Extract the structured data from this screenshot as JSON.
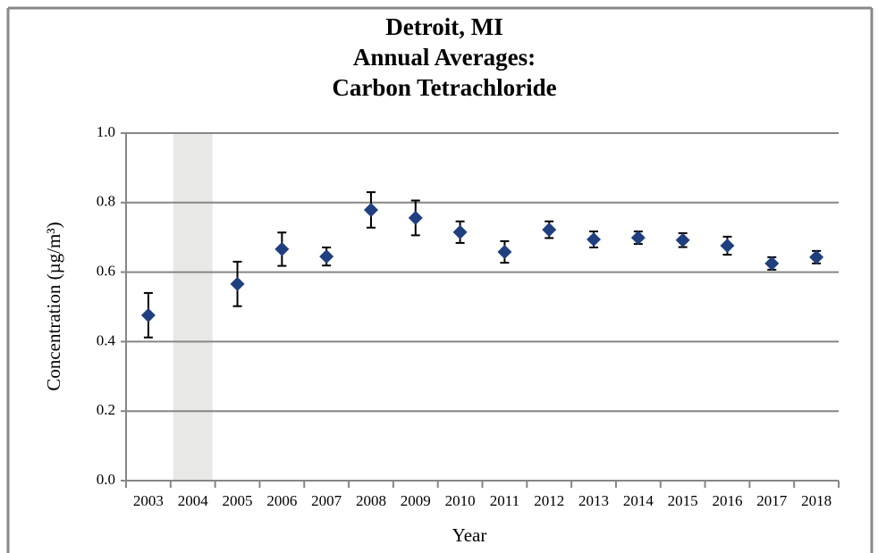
{
  "chart_data": {
    "type": "scatter",
    "title": [
      "Detroit, MI",
      "Annual Averages:",
      "Carbon Tetrachloride"
    ],
    "x_label": "Year",
    "y_label": "Concentration (µg/m³)",
    "categories": [
      "2003",
      "2004",
      "2005",
      "2006",
      "2007",
      "2008",
      "2009",
      "2010",
      "2011",
      "2012",
      "2013",
      "2014",
      "2015",
      "2016",
      "2017",
      "2018"
    ],
    "values": [
      0.476,
      null,
      0.566,
      0.666,
      0.645,
      0.779,
      0.756,
      0.715,
      0.658,
      0.722,
      0.694,
      0.699,
      0.692,
      0.676,
      0.625,
      0.643
    ],
    "errors": [
      0.064,
      null,
      0.064,
      0.048,
      0.026,
      0.051,
      0.05,
      0.031,
      0.031,
      0.024,
      0.023,
      0.018,
      0.02,
      0.026,
      0.018,
      0.018
    ],
    "color": "#1f3f7f",
    "ylim": [
      0,
      1
    ],
    "yticks": [
      {
        "value": 0,
        "label": "0.0"
      },
      {
        "value": 0.2,
        "label": "0.2"
      },
      {
        "value": 0.4,
        "label": "0.4"
      },
      {
        "value": 0.6,
        "label": "0.6"
      },
      {
        "value": 0.8,
        "label": "0.8"
      },
      {
        "value": 1,
        "label": "1.0"
      }
    ],
    "grid": true
  }
}
